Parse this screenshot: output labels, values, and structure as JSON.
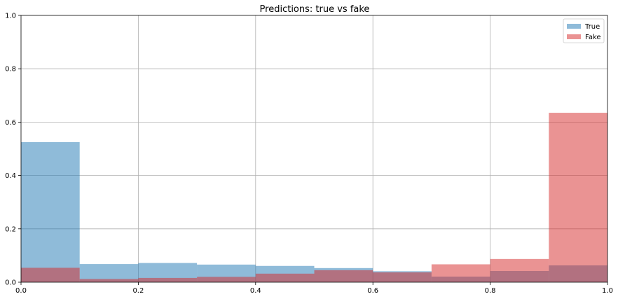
{
  "chart_data": {
    "type": "bar",
    "title": "Predictions: true vs fake",
    "xlabel": "",
    "ylabel": "",
    "xlim": [
      0,
      1
    ],
    "ylim": [
      0,
      1
    ],
    "x_ticks": [
      "0.0",
      "0.2",
      "0.4",
      "0.6",
      "0.8",
      "1.0"
    ],
    "y_ticks": [
      "0.0",
      "0.2",
      "0.4",
      "0.6",
      "0.8",
      "1.0"
    ],
    "grid": true,
    "legend_position": "top-right",
    "bin_edges": [
      0.0,
      0.1,
      0.2,
      0.3,
      0.4,
      0.5,
      0.6,
      0.7,
      0.8,
      0.9,
      1.0
    ],
    "series": [
      {
        "name": "True",
        "color": "#1f77b4",
        "alpha": 0.5,
        "values": [
          0.525,
          0.068,
          0.072,
          0.066,
          0.061,
          0.053,
          0.041,
          0.021,
          0.042,
          0.063
        ]
      },
      {
        "name": "Fake",
        "color": "#d62728",
        "alpha": 0.5,
        "values": [
          0.054,
          0.012,
          0.016,
          0.02,
          0.032,
          0.045,
          0.037,
          0.067,
          0.087,
          0.635
        ]
      }
    ]
  }
}
